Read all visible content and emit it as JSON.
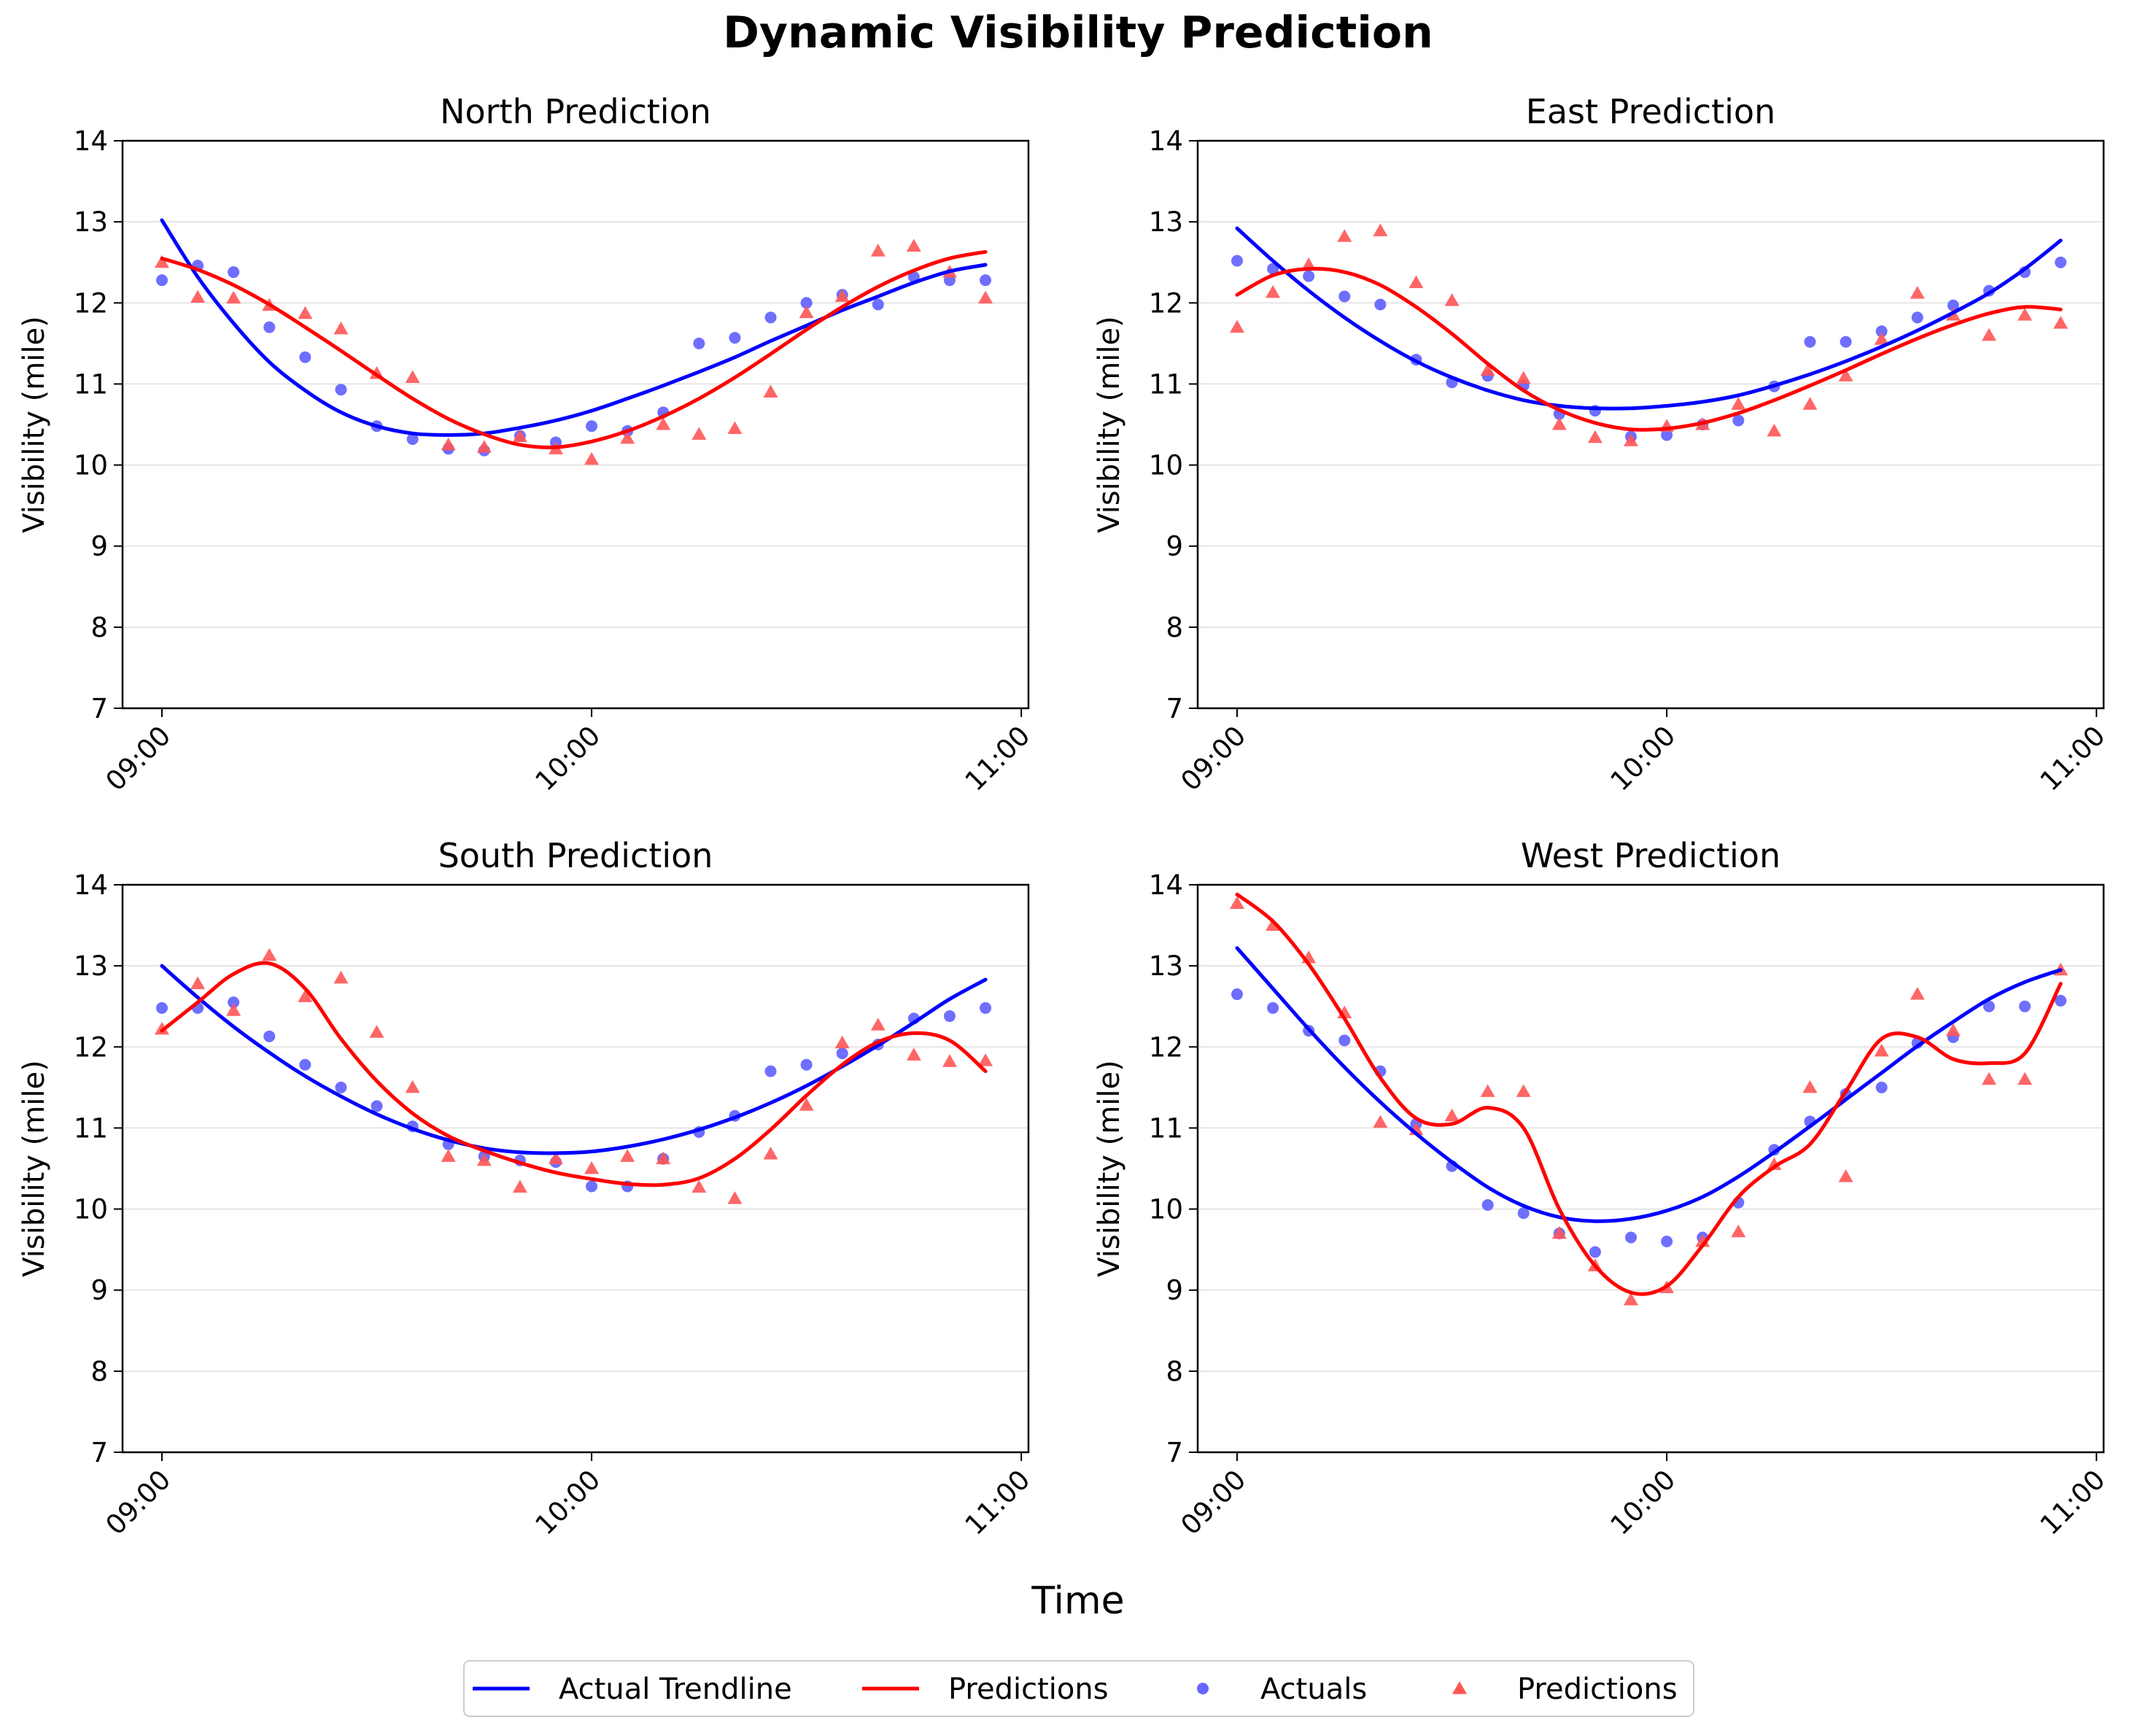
{
  "figure": {
    "title": "Dynamic Visibility Prediction",
    "xlabel": "Time",
    "legend": [
      {
        "label": "Actual Trendline",
        "kind": "line",
        "color": "#0000ff"
      },
      {
        "label": "Predictions",
        "kind": "line",
        "color": "#ff0000"
      },
      {
        "label": "Actuals",
        "kind": "marker-circle",
        "color": "#6666ff"
      },
      {
        "label": "Predictions",
        "kind": "marker-triangle",
        "color": "#ff5555"
      }
    ],
    "colors": {
      "actual": "#0000ff",
      "prediction": "#ff0000",
      "actual_marker": "#6666ff",
      "prediction_marker": "#ff5555",
      "grid": "#e5e5e5",
      "axis": "#000000"
    }
  },
  "chart_data": [
    {
      "type": "line",
      "title": "North Prediction",
      "xlabel": "",
      "ylabel": "Visibility (mile)",
      "xlim_minutes": [
        -5.5,
        121
      ],
      "ylim": [
        7,
        14
      ],
      "x_ticks": [
        "09:00",
        "10:00",
        "11:00"
      ],
      "y_ticks": [
        7,
        8,
        9,
        10,
        11,
        12,
        13,
        14
      ],
      "grid": "horizontal",
      "x_minutes": [
        0,
        5,
        10,
        15,
        20,
        25,
        30,
        35,
        40,
        45,
        50,
        55,
        60,
        65,
        70,
        75,
        80,
        85,
        90,
        95,
        100,
        105,
        110,
        115
      ],
      "series": [
        {
          "name": "Actuals",
          "kind": "scatter",
          "values": [
            12.28,
            12.46,
            12.38,
            11.7,
            11.33,
            10.93,
            10.48,
            10.32,
            10.2,
            10.18,
            10.36,
            10.28,
            10.48,
            10.42,
            10.65,
            11.5,
            11.57,
            11.82,
            12.0,
            12.1,
            11.98,
            12.32,
            12.28,
            12.28
          ]
        },
        {
          "name": "Predictions",
          "kind": "scatter",
          "values": [
            12.5,
            12.07,
            12.06,
            11.97,
            11.87,
            11.68,
            11.13,
            11.08,
            10.25,
            10.22,
            10.35,
            10.2,
            10.07,
            10.33,
            10.5,
            10.38,
            10.45,
            10.9,
            11.88,
            12.08,
            12.64,
            12.7,
            12.38,
            12.06
          ]
        },
        {
          "name": "Actual Trendline",
          "kind": "line",
          "values": [
            13.02,
            12.32,
            11.75,
            11.27,
            10.92,
            10.65,
            10.48,
            10.39,
            10.37,
            10.39,
            10.46,
            10.55,
            10.67,
            10.82,
            10.98,
            11.15,
            11.33,
            11.53,
            11.72,
            11.91,
            12.08,
            12.25,
            12.39,
            12.47
          ]
        },
        {
          "name": "Predictions",
          "kind": "line",
          "values": [
            12.55,
            12.41,
            12.22,
            11.98,
            11.7,
            11.41,
            11.11,
            10.82,
            10.57,
            10.38,
            10.25,
            10.22,
            10.29,
            10.42,
            10.6,
            10.82,
            11.08,
            11.37,
            11.67,
            11.95,
            12.2,
            12.4,
            12.55,
            12.63
          ]
        }
      ]
    },
    {
      "type": "line",
      "title": "East Prediction",
      "xlabel": "",
      "ylabel": "Visibility (mile)",
      "xlim_minutes": [
        -5.5,
        121
      ],
      "ylim": [
        7,
        14
      ],
      "x_ticks": [
        "09:00",
        "10:00",
        "11:00"
      ],
      "y_ticks": [
        7,
        8,
        9,
        10,
        11,
        12,
        13,
        14
      ],
      "grid": "horizontal",
      "x_minutes": [
        0,
        5,
        10,
        15,
        20,
        25,
        30,
        35,
        40,
        45,
        50,
        55,
        60,
        65,
        70,
        75,
        80,
        85,
        90,
        95,
        100,
        105,
        110,
        115
      ],
      "series": [
        {
          "name": "Actuals",
          "kind": "scatter",
          "values": [
            12.52,
            12.42,
            12.33,
            12.08,
            11.98,
            11.3,
            11.02,
            11.1,
            10.98,
            10.63,
            10.67,
            10.35,
            10.37,
            10.5,
            10.55,
            10.97,
            11.52,
            11.52,
            11.65,
            11.82,
            11.97,
            12.15,
            12.38,
            12.5
          ]
        },
        {
          "name": "Predictions",
          "kind": "scatter",
          "values": [
            11.7,
            12.13,
            12.47,
            12.82,
            12.89,
            12.25,
            12.03,
            11.17,
            11.07,
            10.5,
            10.34,
            10.3,
            10.48,
            10.5,
            10.75,
            10.42,
            10.75,
            11.1,
            11.55,
            12.12,
            11.85,
            11.6,
            11.85,
            11.75
          ]
        },
        {
          "name": "Actual Trendline",
          "kind": "line",
          "values": [
            12.92,
            12.52,
            12.15,
            11.82,
            11.53,
            11.28,
            11.08,
            10.92,
            10.8,
            10.73,
            10.7,
            10.7,
            10.73,
            10.78,
            10.86,
            10.98,
            11.12,
            11.28,
            11.46,
            11.66,
            11.88,
            12.12,
            12.42,
            12.77
          ]
        },
        {
          "name": "Predictions",
          "kind": "line",
          "values": [
            12.1,
            12.34,
            12.42,
            12.38,
            12.22,
            11.95,
            11.62,
            11.25,
            10.92,
            10.68,
            10.52,
            10.44,
            10.45,
            10.52,
            10.64,
            10.8,
            10.98,
            11.17,
            11.37,
            11.56,
            11.73,
            11.87,
            11.95,
            11.92
          ]
        }
      ]
    },
    {
      "type": "line",
      "title": "South Prediction",
      "xlabel": "",
      "ylabel": "Visibility (mile)",
      "xlim_minutes": [
        -5.5,
        121
      ],
      "ylim": [
        7,
        14
      ],
      "x_ticks": [
        "09:00",
        "10:00",
        "11:00"
      ],
      "y_ticks": [
        7,
        8,
        9,
        10,
        11,
        12,
        13,
        14
      ],
      "grid": "horizontal",
      "x_minutes": [
        0,
        5,
        10,
        15,
        20,
        25,
        30,
        35,
        40,
        45,
        50,
        55,
        60,
        65,
        70,
        75,
        80,
        85,
        90,
        95,
        100,
        105,
        110,
        115
      ],
      "series": [
        {
          "name": "Actuals",
          "kind": "scatter",
          "values": [
            12.48,
            12.48,
            12.55,
            12.13,
            11.78,
            11.5,
            11.27,
            11.02,
            10.8,
            10.65,
            10.6,
            10.58,
            10.28,
            10.28,
            10.62,
            10.95,
            11.15,
            11.7,
            11.78,
            11.92,
            12.03,
            12.35,
            12.38,
            12.48
          ]
        },
        {
          "name": "Predictions",
          "kind": "scatter",
          "values": [
            12.22,
            12.78,
            12.45,
            13.13,
            12.62,
            12.85,
            12.18,
            11.5,
            10.65,
            10.6,
            10.27,
            10.62,
            10.5,
            10.65,
            10.62,
            10.27,
            10.13,
            10.68,
            11.28,
            12.05,
            12.27,
            11.9,
            11.82,
            11.83
          ]
        },
        {
          "name": "Actual Trendline",
          "kind": "line",
          "values": [
            13.0,
            12.61,
            12.25,
            11.93,
            11.64,
            11.39,
            11.17,
            10.99,
            10.85,
            10.75,
            10.7,
            10.69,
            10.71,
            10.77,
            10.86,
            10.98,
            11.13,
            11.31,
            11.52,
            11.76,
            12.02,
            12.3,
            12.59,
            12.83
          ]
        },
        {
          "name": "Predictions",
          "kind": "line",
          "values": [
            12.2,
            12.55,
            12.9,
            13.03,
            12.72,
            12.1,
            11.58,
            11.18,
            10.9,
            10.72,
            10.57,
            10.45,
            10.37,
            10.31,
            10.3,
            10.38,
            10.62,
            10.98,
            11.4,
            11.78,
            12.06,
            12.17,
            12.08,
            11.7
          ]
        }
      ]
    },
    {
      "type": "line",
      "title": "West Prediction",
      "xlabel": "",
      "ylabel": "Visibility (mile)",
      "xlim_minutes": [
        -5.5,
        121
      ],
      "ylim": [
        7,
        14
      ],
      "x_ticks": [
        "09:00",
        "10:00",
        "11:00"
      ],
      "y_ticks": [
        7,
        8,
        9,
        10,
        11,
        12,
        13,
        14
      ],
      "grid": "horizontal",
      "x_minutes": [
        0,
        5,
        10,
        15,
        20,
        25,
        30,
        35,
        40,
        45,
        50,
        55,
        60,
        65,
        70,
        75,
        80,
        85,
        90,
        95,
        100,
        105,
        110,
        115
      ],
      "series": [
        {
          "name": "Actuals",
          "kind": "scatter",
          "values": [
            12.65,
            12.48,
            12.2,
            12.08,
            11.7,
            11.05,
            10.53,
            10.05,
            9.95,
            9.7,
            9.47,
            9.65,
            9.6,
            9.65,
            10.08,
            10.73,
            11.08,
            11.42,
            11.5,
            12.05,
            12.12,
            12.5,
            12.5,
            12.57
          ]
        },
        {
          "name": "Predictions",
          "kind": "scatter",
          "values": [
            13.77,
            13.5,
            13.1,
            12.42,
            11.07,
            10.98,
            11.15,
            11.45,
            11.45,
            9.7,
            9.3,
            8.88,
            9.03,
            9.6,
            9.72,
            10.55,
            11.5,
            10.4,
            11.95,
            12.65,
            12.2,
            11.6,
            11.6,
            12.95
          ]
        },
        {
          "name": "Actual Trendline",
          "kind": "line",
          "values": [
            13.22,
            12.72,
            12.22,
            11.75,
            11.32,
            10.93,
            10.58,
            10.27,
            10.04,
            9.9,
            9.85,
            9.88,
            9.98,
            10.15,
            10.4,
            10.7,
            11.02,
            11.35,
            11.68,
            12.01,
            12.31,
            12.59,
            12.8,
            12.95
          ]
        },
        {
          "name": "Predictions",
          "kind": "line",
          "values": [
            13.88,
            13.55,
            13.02,
            12.35,
            11.62,
            11.12,
            11.05,
            11.25,
            11.0,
            10.0,
            9.3,
            8.97,
            9.05,
            9.55,
            10.15,
            10.52,
            10.8,
            11.45,
            12.1,
            12.12,
            11.85,
            11.8,
            11.92,
            12.78
          ]
        }
      ]
    }
  ]
}
